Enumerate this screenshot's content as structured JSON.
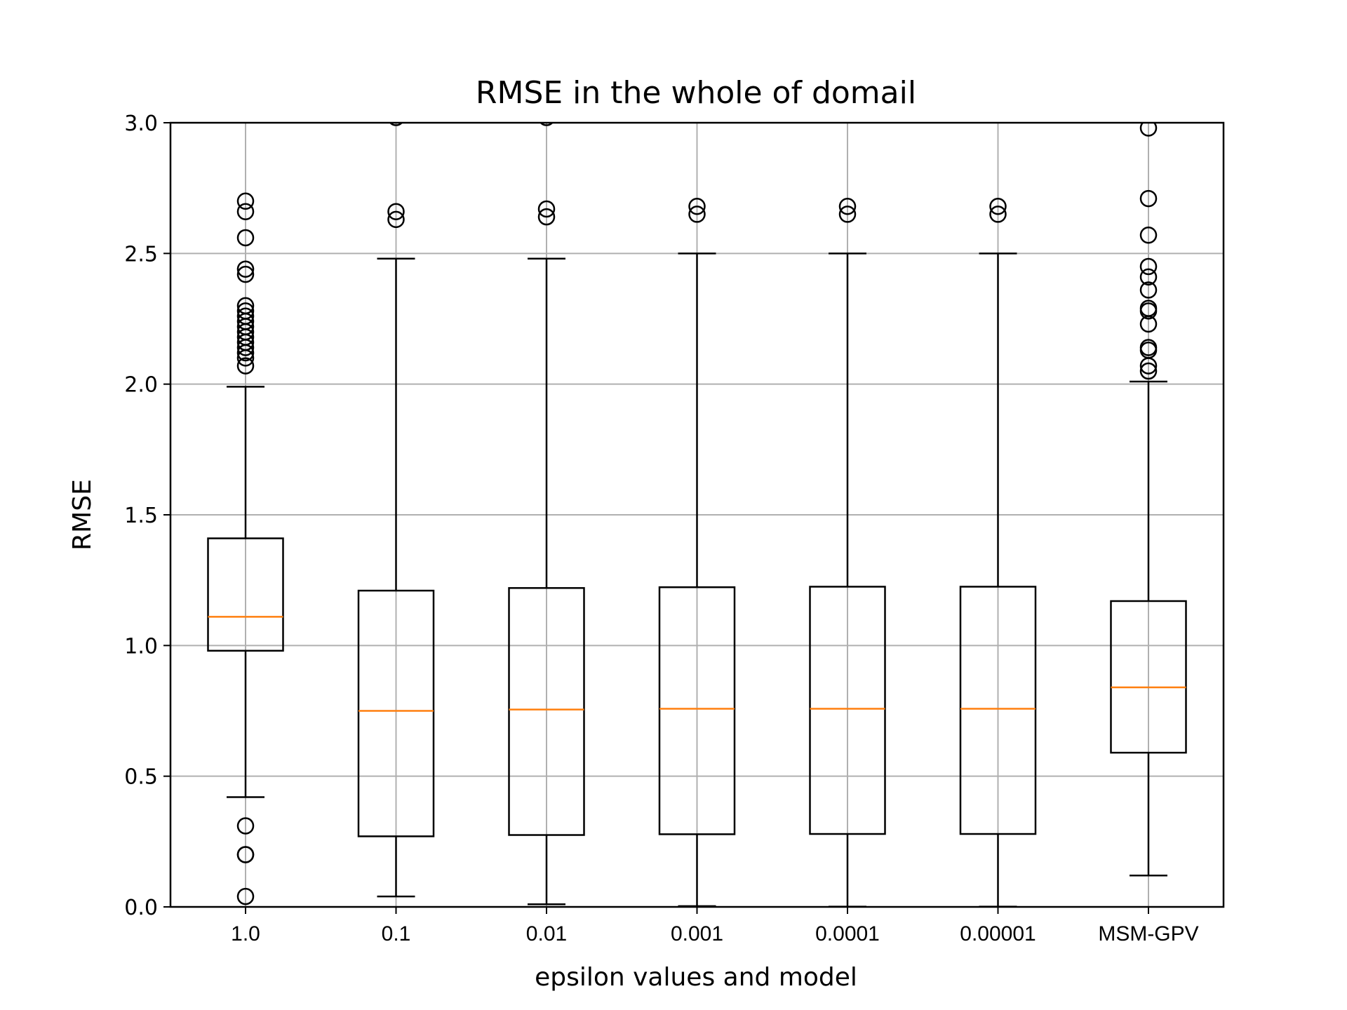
{
  "chart_data": {
    "type": "boxplot",
    "title": "RMSE in the whole of domail",
    "xlabel": "epsilon values and model",
    "ylabel": "RMSE",
    "ylim": [
      0,
      3.0
    ],
    "yticks": [
      "0.0",
      "0.5",
      "1.0",
      "1.5",
      "2.0",
      "2.5",
      "3.0"
    ],
    "grid": true,
    "colors": {
      "box": "#000000",
      "median": "#ff7f0e",
      "grid": "#b0b0b0"
    },
    "categories": [
      "1.0",
      "0.1",
      "0.01",
      "0.001",
      "0.0001",
      "0.00001",
      "MSM-GPV"
    ],
    "boxes": [
      {
        "label": "1.0",
        "whislo": 0.42,
        "q1": 0.98,
        "med": 1.11,
        "q3": 1.41,
        "whishi": 1.99,
        "fliers": [
          0.04,
          0.2,
          0.2,
          0.31,
          2.07,
          2.1,
          2.12,
          2.14,
          2.16,
          2.18,
          2.2,
          2.22,
          2.24,
          2.26,
          2.28,
          2.3,
          2.42,
          2.44,
          2.56,
          2.66,
          2.7
        ]
      },
      {
        "label": "0.1",
        "whislo": 0.04,
        "q1": 0.27,
        "med": 0.75,
        "q3": 1.21,
        "whishi": 2.48,
        "fliers": [
          2.63,
          2.66,
          3.02
        ]
      },
      {
        "label": "0.01",
        "whislo": 0.01,
        "q1": 0.275,
        "med": 0.755,
        "q3": 1.22,
        "whishi": 2.48,
        "fliers": [
          2.64,
          2.67,
          3.02
        ]
      },
      {
        "label": "0.001",
        "whislo": 0.003,
        "q1": 0.278,
        "med": 0.758,
        "q3": 1.223,
        "whishi": 2.5,
        "fliers": [
          2.65,
          2.68
        ]
      },
      {
        "label": "0.0001",
        "whislo": 0.001,
        "q1": 0.279,
        "med": 0.758,
        "q3": 1.225,
        "whishi": 2.5,
        "fliers": [
          2.65,
          2.68
        ]
      },
      {
        "label": "0.00001",
        "whislo": 0.001,
        "q1": 0.279,
        "med": 0.758,
        "q3": 1.225,
        "whishi": 2.5,
        "fliers": [
          2.65,
          2.68
        ]
      },
      {
        "label": "MSM-GPV",
        "whislo": 0.12,
        "q1": 0.59,
        "med": 0.84,
        "q3": 1.17,
        "whishi": 2.01,
        "fliers": [
          2.05,
          2.07,
          2.13,
          2.14,
          2.23,
          2.28,
          2.29,
          2.36,
          2.41,
          2.45,
          2.57,
          2.71,
          2.98
        ]
      }
    ]
  }
}
